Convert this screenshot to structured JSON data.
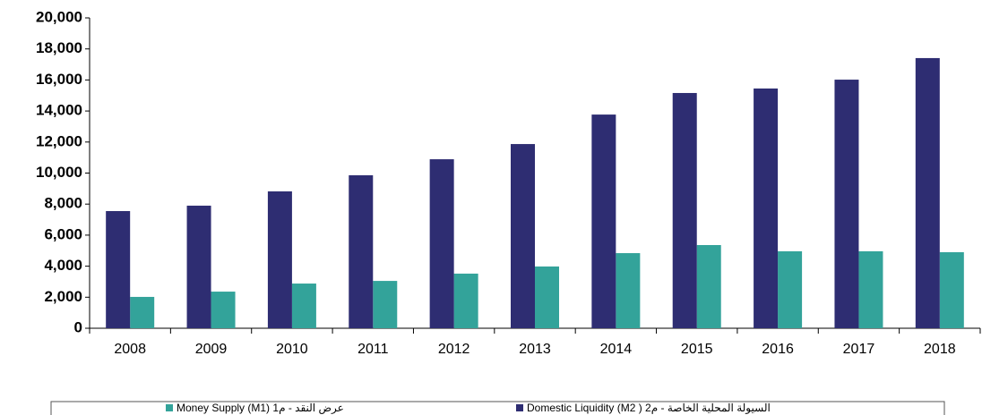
{
  "chart_data": {
    "type": "bar",
    "categories": [
      "2008",
      "2009",
      "2010",
      "2011",
      "2012",
      "2013",
      "2014",
      "2015",
      "2016",
      "2017",
      "2018"
    ],
    "series": [
      {
        "name": "Money Supply (M1)  عرض النقد - م1",
        "color": "#33a39a",
        "values": [
          2020,
          2360,
          2880,
          3050,
          3520,
          3980,
          4840,
          5360,
          4960,
          4960,
          4900
        ]
      },
      {
        "name": "Domestic Liquidity (M2 )  السيولة المحلية الخاصة - م2",
        "color": "#2e2d72",
        "values": [
          7550,
          7900,
          8820,
          9860,
          10890,
          11870,
          13770,
          15160,
          15450,
          16020,
          17410
        ]
      }
    ],
    "ylim": [
      0,
      20000
    ],
    "yticks": [
      0,
      {
        "value": 2000,
        "label": "2,000"
      },
      {
        "value": 4000,
        "label": "4,000"
      },
      {
        "value": 6000,
        "label": "6,000"
      },
      {
        "value": 8000,
        "label": "8,000"
      },
      {
        "value": 10000,
        "label": "10,000"
      },
      {
        "value": 12000,
        "label": "12,000"
      },
      {
        "value": 14000,
        "label": "14,000"
      },
      {
        "value": 16000,
        "label": "16,000"
      },
      {
        "value": 18000,
        "label": "18,000"
      },
      {
        "value": 20000,
        "label": "20,000"
      }
    ],
    "grid": false,
    "legend": "bottom"
  }
}
